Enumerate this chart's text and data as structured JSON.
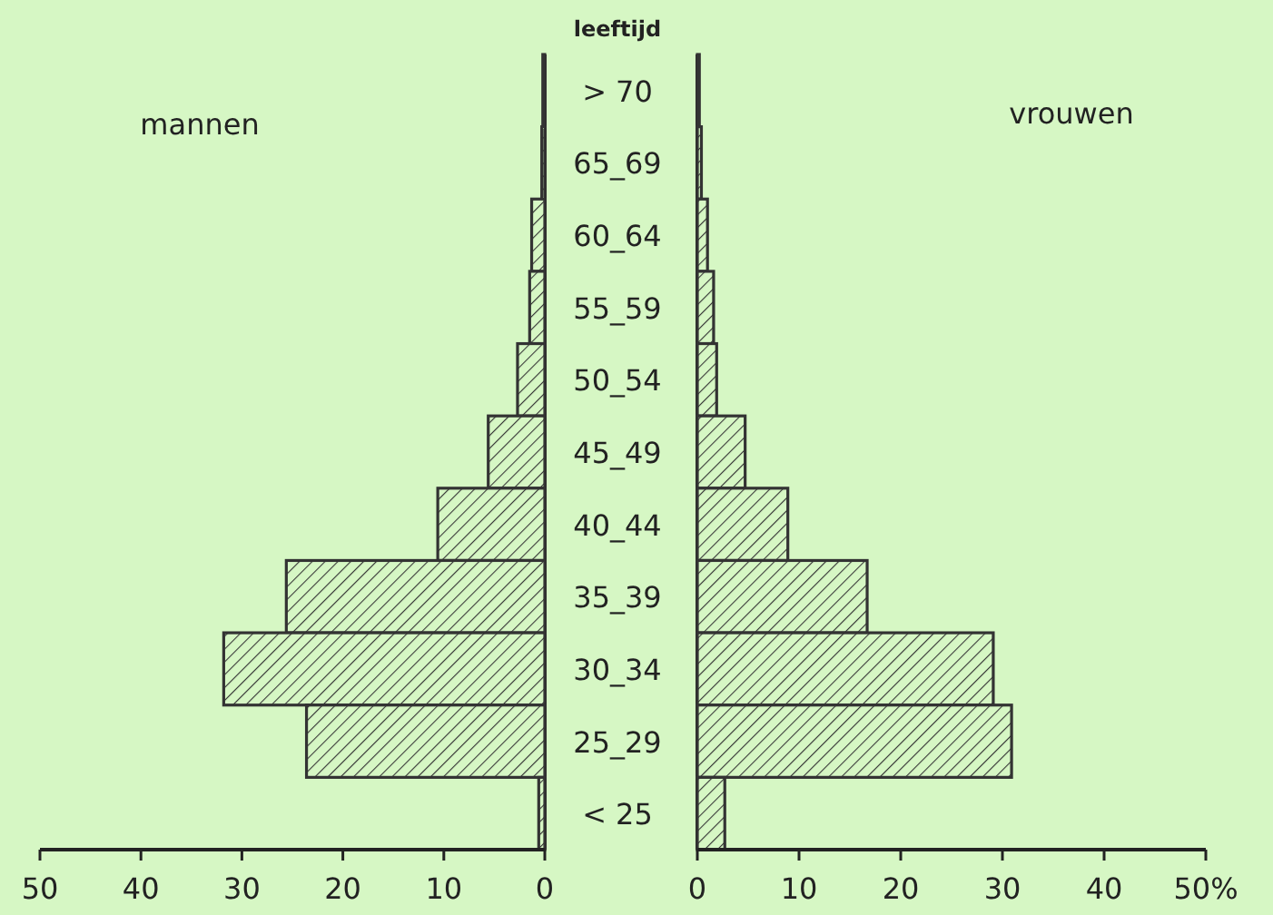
{
  "chart_data": [
    {
      "type": "bar",
      "orientation": "horizontal",
      "title": "mannen",
      "ylabel": "leeftijd",
      "categories": [
        "> 70",
        "65_69",
        "60_64",
        "55_59",
        "50_54",
        "45_49",
        "40_44",
        "35_39",
        "30_34",
        "25_29",
        "< 25"
      ],
      "series": [
        {
          "color": "#333333",
          "values": [
            0.2,
            0.3,
            1.3,
            1.5,
            2.7,
            5.6,
            10.6,
            25.6,
            31.8,
            23.6,
            0.6
          ]
        }
      ],
      "xlim": [
        50,
        0
      ],
      "xticks": [
        50,
        40,
        30,
        20,
        10,
        0
      ]
    },
    {
      "type": "bar",
      "orientation": "horizontal",
      "title": "vrouwen",
      "series": [
        {
          "color": "#333333",
          "values": [
            0.2,
            0.4,
            1.0,
            1.6,
            1.9,
            4.7,
            8.9,
            16.7,
            29.1,
            30.9,
            2.7
          ]
        }
      ],
      "xlim": [
        0,
        50
      ],
      "xticks": [
        0,
        10,
        20,
        30,
        40,
        {
          "value": 50,
          "label": "50%"
        }
      ]
    }
  ]
}
